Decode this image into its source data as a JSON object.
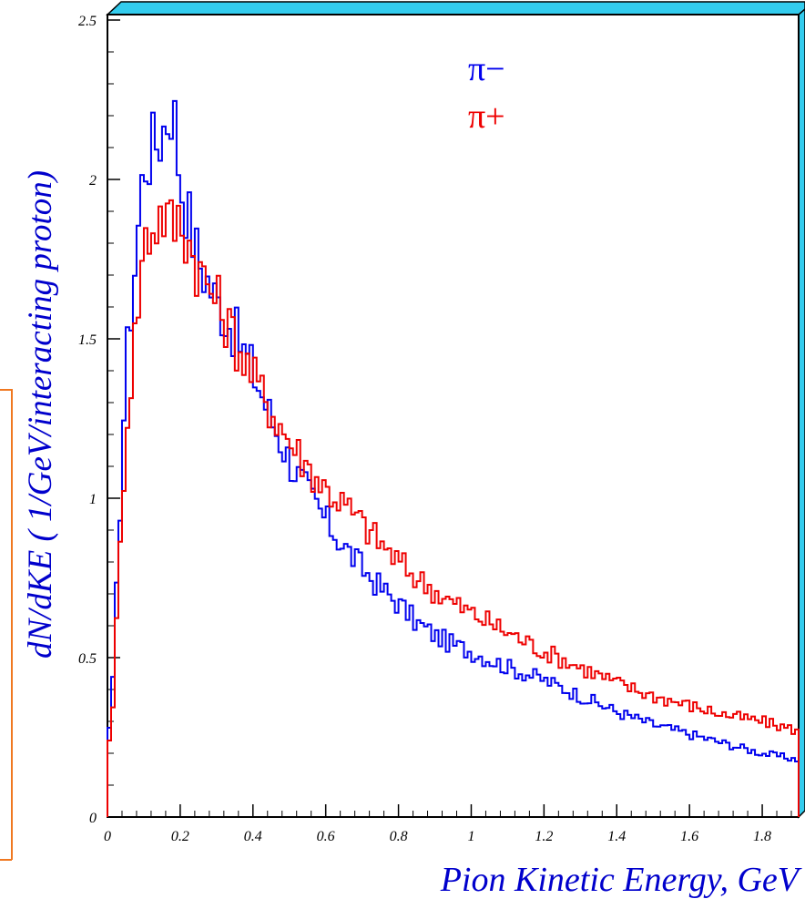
{
  "chart_data": {
    "type": "line",
    "step": true,
    "xlabel": "Pion Kinetic Energy, GeV",
    "ylabel": "dN/dKE ( 1/GeV/interacting proton)",
    "xlim": [
      0,
      1.9
    ],
    "ylim": [
      0,
      2.5
    ],
    "x_ticks": [
      0,
      0.2,
      0.4,
      0.6,
      0.8,
      1,
      1.2,
      1.4,
      1.6,
      1.8
    ],
    "x_tick_labels": [
      "0",
      "0.2",
      "0.4",
      "0.6",
      "0.8",
      "1",
      "1.2",
      "1.4",
      "1.6",
      "1.8"
    ],
    "y_ticks": [
      0,
      0.5,
      1,
      1.5,
      2,
      2.5
    ],
    "y_tick_labels": [
      "0",
      "0.5",
      "1",
      "1.5",
      "2",
      "2.5"
    ],
    "legend": [
      {
        "label": "π−",
        "color": "#0000ee"
      },
      {
        "label": "π+",
        "color": "#ee0000"
      }
    ],
    "series": [
      {
        "name": "π−",
        "color": "#0000ee",
        "x": [
          0,
          0.05,
          0.1,
          0.15,
          0.18,
          0.2,
          0.25,
          0.3,
          0.35,
          0.4,
          0.45,
          0.5,
          0.55,
          0.6,
          0.65,
          0.7,
          0.75,
          0.8,
          0.85,
          0.9,
          0.95,
          1.0,
          1.1,
          1.2,
          1.3,
          1.4,
          1.5,
          1.6,
          1.7,
          1.8,
          1.9
        ],
        "y": [
          0.0,
          1.4,
          2.05,
          2.15,
          2.25,
          2.0,
          1.75,
          1.62,
          1.52,
          1.4,
          1.25,
          1.12,
          1.02,
          0.93,
          0.85,
          0.78,
          0.72,
          0.67,
          0.61,
          0.57,
          0.54,
          0.52,
          0.47,
          0.43,
          0.38,
          0.33,
          0.29,
          0.26,
          0.23,
          0.2,
          0.18
        ]
      },
      {
        "name": "π+",
        "color": "#ee0000",
        "x": [
          0,
          0.05,
          0.1,
          0.15,
          0.18,
          0.2,
          0.25,
          0.3,
          0.35,
          0.4,
          0.45,
          0.5,
          0.55,
          0.6,
          0.65,
          0.7,
          0.75,
          0.8,
          0.85,
          0.9,
          0.95,
          1.0,
          1.1,
          1.2,
          1.3,
          1.4,
          1.5,
          1.6,
          1.7,
          1.8,
          1.9
        ],
        "y": [
          0.0,
          1.2,
          1.8,
          1.9,
          1.85,
          1.88,
          1.72,
          1.62,
          1.5,
          1.38,
          1.28,
          1.18,
          1.1,
          1.03,
          0.98,
          0.92,
          0.86,
          0.8,
          0.75,
          0.71,
          0.67,
          0.64,
          0.58,
          0.52,
          0.47,
          0.42,
          0.38,
          0.35,
          0.32,
          0.3,
          0.27
        ]
      }
    ]
  }
}
